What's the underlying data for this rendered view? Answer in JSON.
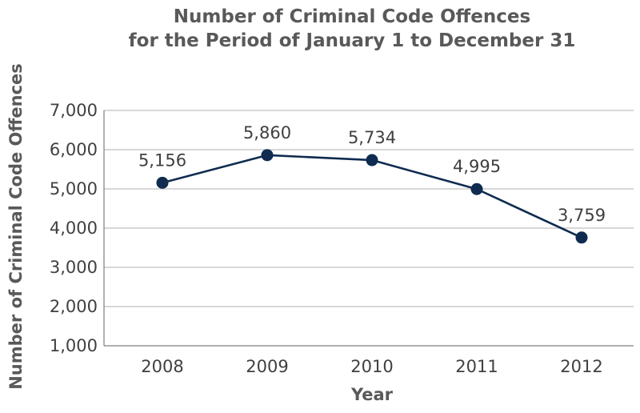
{
  "chart_data": {
    "type": "line",
    "title": "Number of Criminal Code Offences",
    "subtitle": "for the Period of January 1 to December 31",
    "xlabel": "Year",
    "ylabel": "Number of Criminal Code Offences",
    "categories": [
      "2008",
      "2009",
      "2010",
      "2011",
      "2012"
    ],
    "values": [
      5156,
      5860,
      5734,
      4995,
      3759
    ],
    "data_labels": [
      "5,156",
      "5,860",
      "5,734",
      "4,995",
      "3,759"
    ],
    "ylim": [
      1000,
      7000
    ],
    "yticks": [
      1000,
      2000,
      3000,
      4000,
      5000,
      6000,
      7000
    ],
    "ytick_labels": [
      "1,000",
      "2,000",
      "3,000",
      "4,000",
      "5,000",
      "6,000",
      "7,000"
    ],
    "grid": true,
    "legend": "none",
    "colors": {
      "series": "#0f2b4f",
      "grid": "#bfbfbf",
      "axis_text": "#404040",
      "title_text": "#595959"
    }
  }
}
